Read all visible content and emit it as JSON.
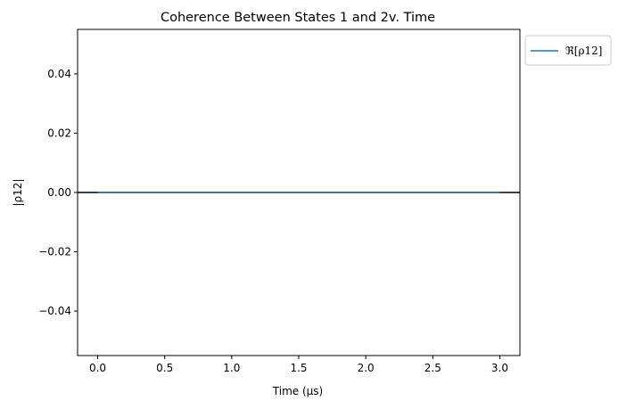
{
  "chart_data": {
    "type": "line",
    "title": "Coherence Between States 1 and 2v. Time",
    "xlabel": "Time (μs)",
    "ylabel": "|ρ12|",
    "xlim": [
      -0.15,
      3.15
    ],
    "ylim": [
      -0.055,
      0.055
    ],
    "x_ticks": [
      0.0,
      0.5,
      1.0,
      1.5,
      2.0,
      2.5,
      3.0
    ],
    "x_tick_labels": [
      "0.0",
      "0.5",
      "1.0",
      "1.5",
      "2.0",
      "2.5",
      "3.0"
    ],
    "y_ticks": [
      0.04,
      0.02,
      0.0,
      -0.02,
      -0.04
    ],
    "y_tick_labels": [
      "0.04",
      "0.02",
      "0.00",
      "−0.02",
      "−0.04"
    ],
    "grid": false,
    "legend_position": "outside-top-right",
    "series": [
      {
        "name": "ℜ[ρ12]",
        "color": "#1f77b4",
        "x": [
          0.0,
          0.5,
          1.0,
          1.5,
          2.0,
          2.5,
          3.0
        ],
        "y": [
          0,
          0,
          0,
          0,
          0,
          0,
          0
        ]
      }
    ],
    "reference_lines": [
      {
        "type": "horizontal",
        "y": 0.0,
        "color": "#000000"
      }
    ]
  }
}
